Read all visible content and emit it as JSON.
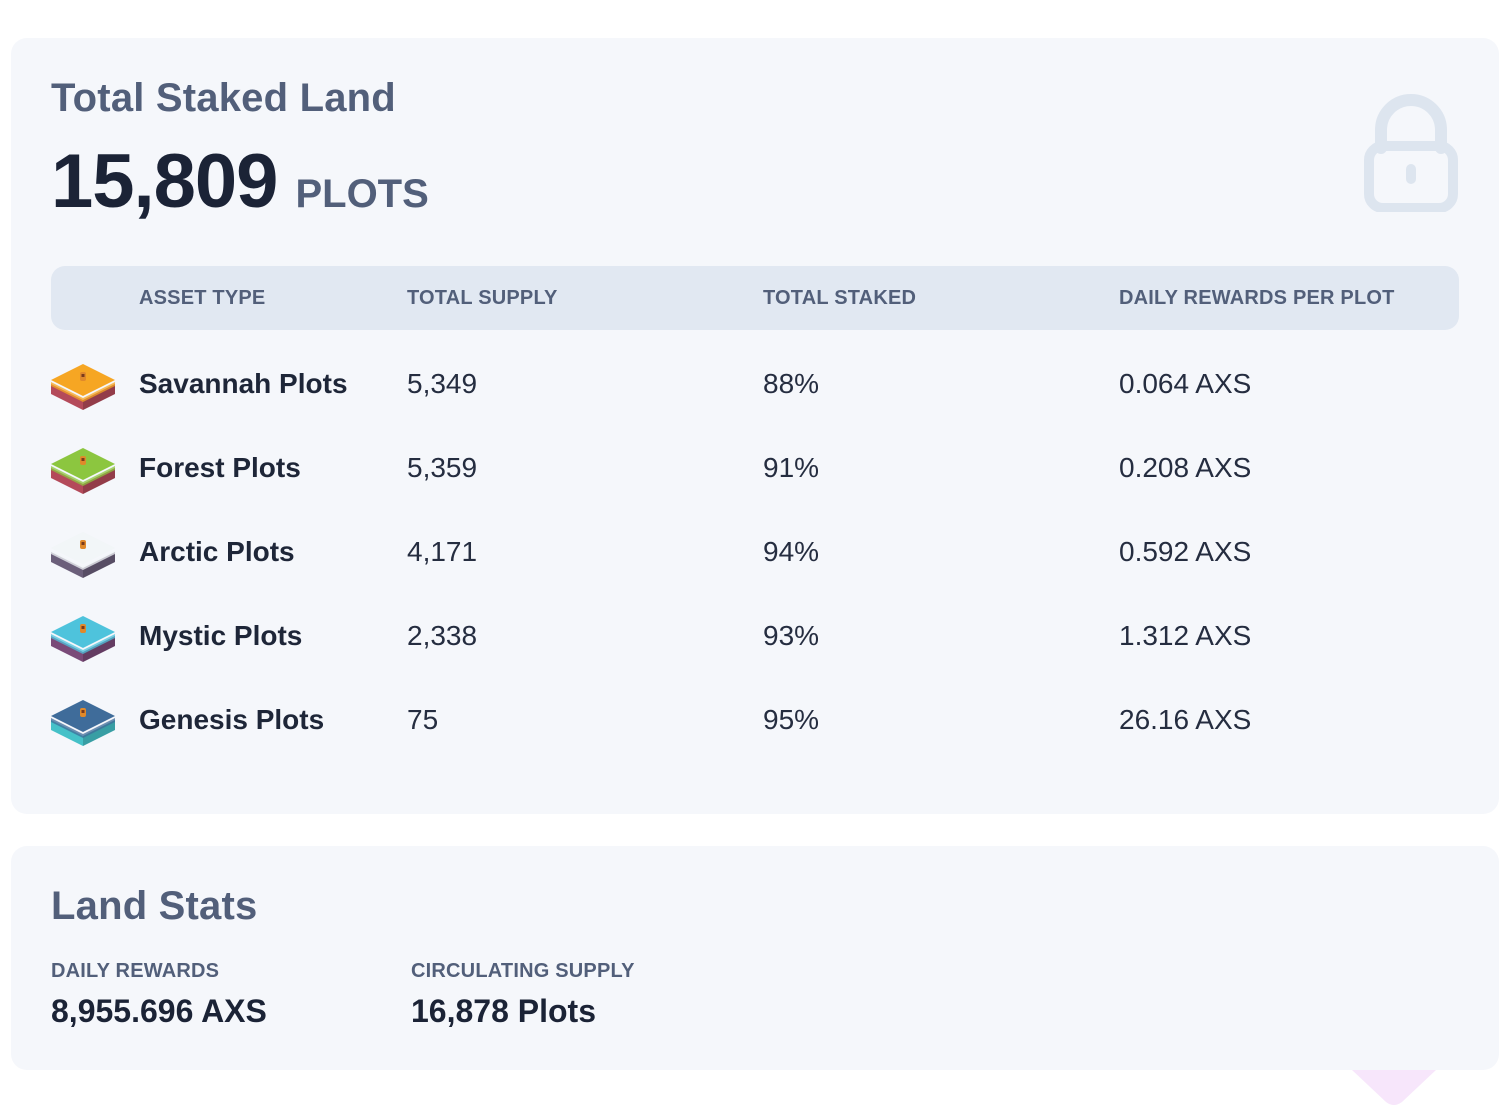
{
  "staked": {
    "title": "Total Staked Land",
    "total_number": "15,809",
    "total_unit": "PLOTS",
    "icon": "lock-icon"
  },
  "table": {
    "headers": [
      "ASSET TYPE",
      "TOTAL SUPPLY",
      "TOTAL STAKED",
      "DAILY REWARDS PER PLOT"
    ],
    "rows": [
      {
        "icon": "savannah-plot-icon",
        "name": "Savannah Plots",
        "supply": "5,349",
        "staked": "88%",
        "reward": "0.064 AXS",
        "top_color": "#f6a623",
        "side_color": "#b44a5a"
      },
      {
        "icon": "forest-plot-icon",
        "name": "Forest Plots",
        "supply": "5,359",
        "staked": "91%",
        "reward": "0.208 AXS",
        "top_color": "#8cc63f",
        "side_color": "#b44a5a"
      },
      {
        "icon": "arctic-plot-icon",
        "name": "Arctic Plots",
        "supply": "4,171",
        "staked": "94%",
        "reward": "0.592 AXS",
        "top_color": "#f2f6f8",
        "side_color": "#6b5f7a"
      },
      {
        "icon": "mystic-plot-icon",
        "name": "Mystic Plots",
        "supply": "2,338",
        "staked": "93%",
        "reward": "1.312 AXS",
        "top_color": "#4ec3dc",
        "side_color": "#7a4a78"
      },
      {
        "icon": "genesis-plot-icon",
        "name": "Genesis Plots",
        "supply": "75",
        "staked": "95%",
        "reward": "26.16 AXS",
        "top_color": "#3f6c9a",
        "side_color": "#45c1c8"
      }
    ]
  },
  "stats": {
    "title": "Land Stats",
    "daily_rewards_label": "DAILY REWARDS",
    "daily_rewards_value": "8,955.696 AXS",
    "circulating_label": "CIRCULATING SUPPLY",
    "circulating_value": "16,878 Plots"
  },
  "colors": {
    "card_bg": "#f5f7fb",
    "header_bg": "#e1e8f2",
    "muted_text": "#525f7a",
    "strong_text": "#1b2336",
    "lock_icon": "#dde5ef"
  }
}
